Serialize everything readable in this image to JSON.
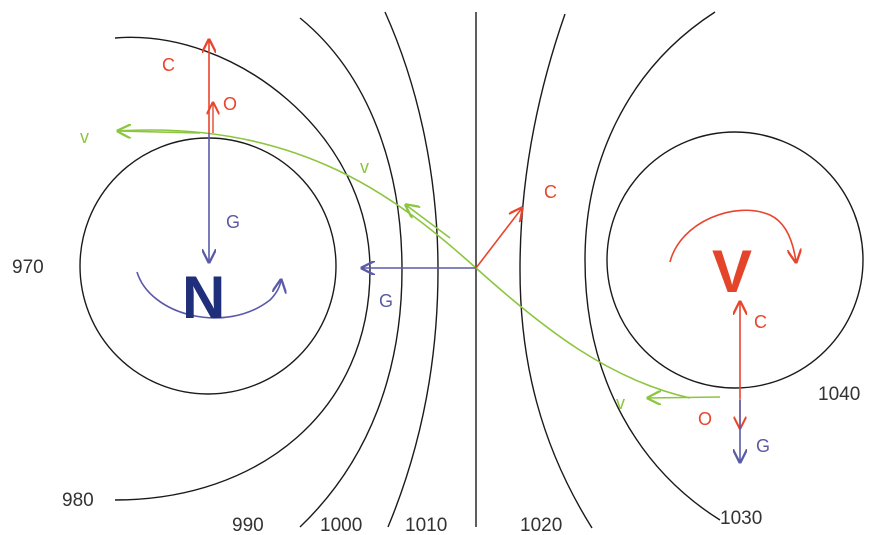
{
  "colors": {
    "isobar": "#1a1a1a",
    "coriolis": "#e8452c",
    "pressure_gradient": "#5a5aa8",
    "wind": "#8cc63f",
    "centrifugal": "#e8452c",
    "low": "#1f2f7a",
    "high": "#e4452a"
  },
  "centers": {
    "low": {
      "label": "N"
    },
    "high": {
      "label": "V"
    }
  },
  "isobars": {
    "i970": "970",
    "i980": "980",
    "i990": "990",
    "i1000": "1000",
    "i1010": "1010",
    "i1020": "1020",
    "i1030": "1030",
    "i1040": "1040"
  },
  "vectors": {
    "low_top": {
      "coriolis": "C",
      "centrifugal": "O",
      "pressure_gradient": "G",
      "wind": "v"
    },
    "middle": {
      "coriolis": "C",
      "pressure_gradient": "G",
      "wind": "v"
    },
    "high_bottom": {
      "coriolis": "C",
      "centrifugal": "O",
      "pressure_gradient": "G",
      "wind": "v"
    }
  }
}
